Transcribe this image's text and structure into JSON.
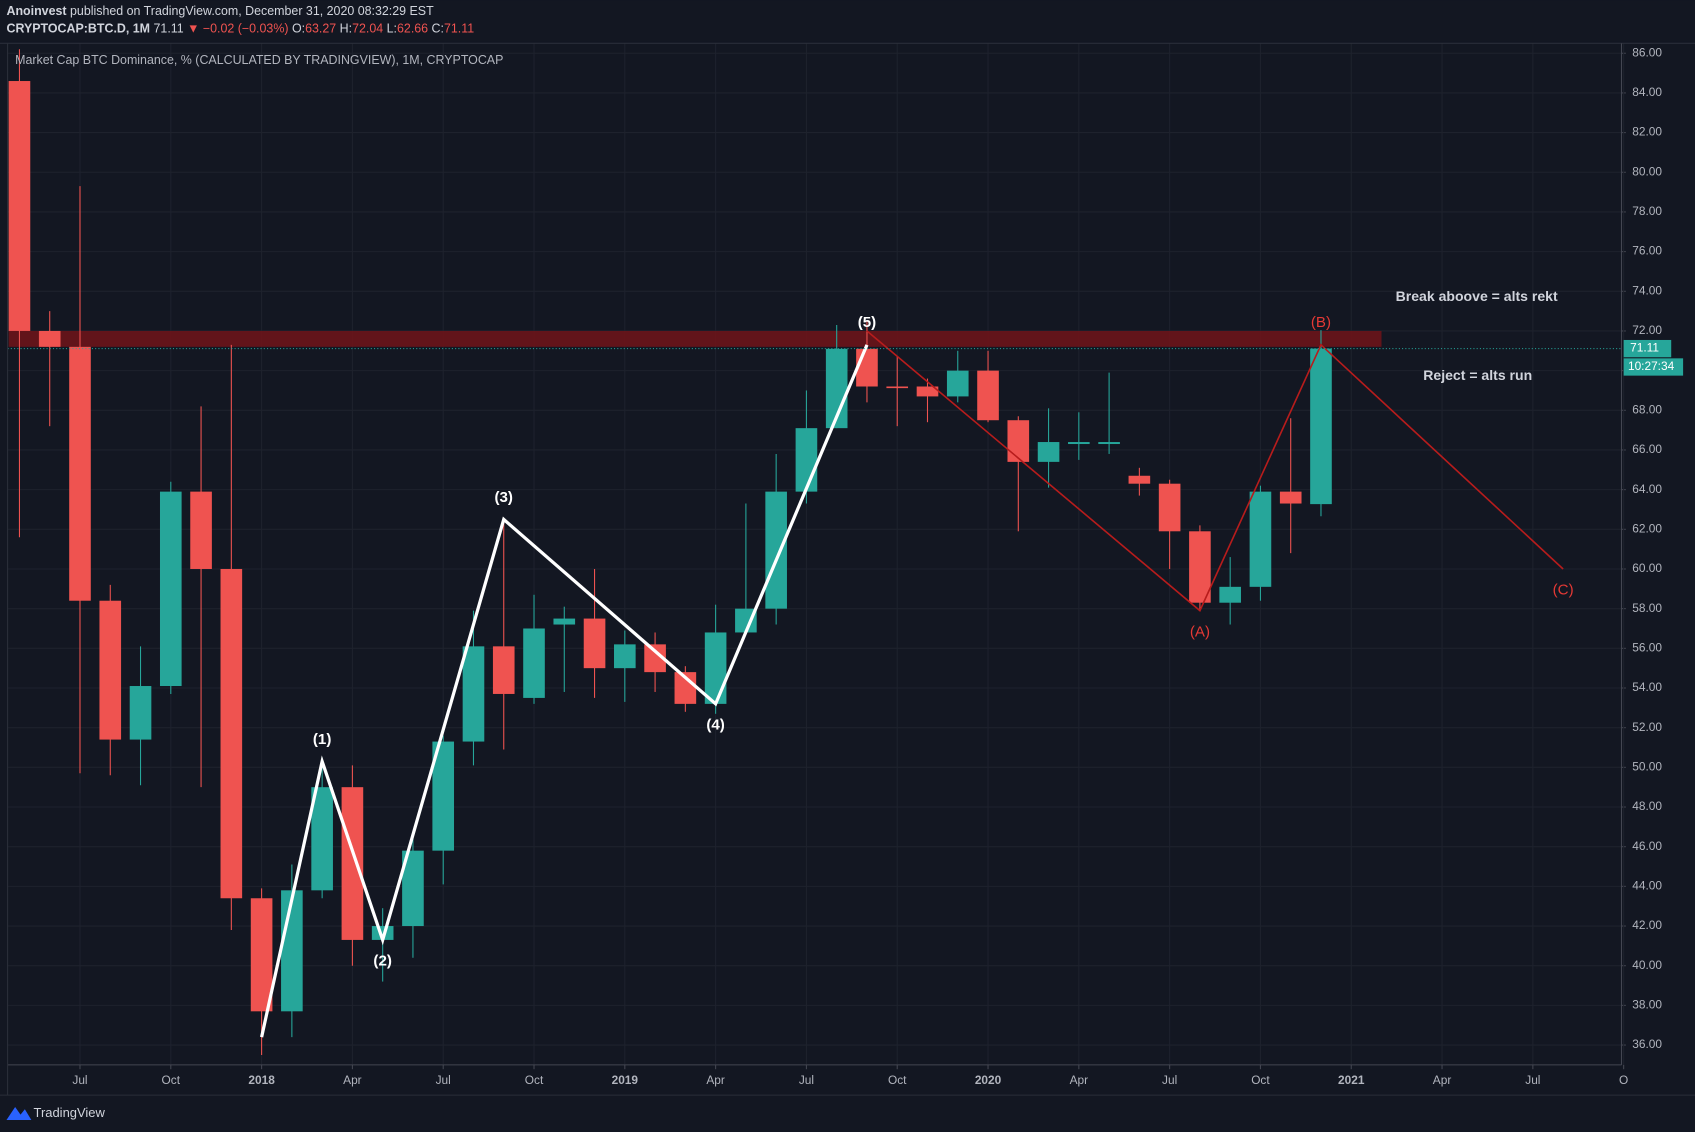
{
  "header": {
    "publisher": "Anoinvest",
    "published": "published on TradingView.com, December 31, 2020 08:32:29 EST",
    "symbol": "CRYPTOCAP:BTC.D, 1M",
    "last": "71.11",
    "change": "▼ −0.02 (−0.03%)",
    "ohlc": [
      {
        "key": "O:",
        "value": "63.27"
      },
      {
        "key": "H:",
        "value": "72.04"
      },
      {
        "key": "L:",
        "value": "62.66"
      },
      {
        "key": "C:",
        "value": "71.11"
      }
    ]
  },
  "chart_data": {
    "type": "candlestick",
    "title": "Market Cap BTC Dominance, % (CALCULATED BY TRADINGVIEW), 1M, CRYPTOCAP",
    "x": [
      "2017-05",
      "2017-06",
      "2017-07",
      "2017-08",
      "2017-09",
      "2017-10",
      "2017-11",
      "2017-12",
      "2018-01",
      "2018-02",
      "2018-03",
      "2018-04",
      "2018-05",
      "2018-06",
      "2018-07",
      "2018-08",
      "2018-09",
      "2018-10",
      "2018-11",
      "2018-12",
      "2019-01",
      "2019-02",
      "2019-03",
      "2019-04",
      "2019-05",
      "2019-06",
      "2019-07",
      "2019-08",
      "2019-09",
      "2019-10",
      "2019-11",
      "2019-12",
      "2020-01",
      "2020-02",
      "2020-03",
      "2020-04",
      "2020-05",
      "2020-06",
      "2020-07",
      "2020-08",
      "2020-09",
      "2020-10",
      "2020-11",
      "2020-12"
    ],
    "open": [
      84.6,
      72.0,
      71.2,
      58.4,
      51.4,
      54.1,
      63.9,
      60.0,
      43.4,
      37.7,
      43.8,
      49.0,
      41.3,
      42.0,
      45.8,
      51.3,
      56.1,
      53.5,
      57.2,
      57.5,
      55.0,
      56.2,
      54.8,
      53.2,
      56.8,
      58.0,
      63.9,
      67.1,
      71.1,
      69.2,
      69.2,
      68.7,
      70.0,
      67.5,
      65.4,
      66.3,
      66.3,
      64.7,
      64.3,
      61.9,
      58.3,
      59.1,
      63.9,
      63.27
    ],
    "high": [
      86.2,
      73.0,
      79.3,
      59.2,
      56.1,
      64.4,
      68.2,
      71.3,
      43.9,
      45.1,
      50.5,
      50.1,
      42.9,
      46.7,
      51.6,
      57.9,
      62.5,
      58.7,
      58.1,
      60.0,
      56.9,
      56.8,
      55.1,
      58.2,
      63.3,
      65.8,
      69.0,
      72.3,
      72.5,
      70.7,
      69.6,
      71.0,
      71.0,
      67.7,
      68.1,
      67.9,
      69.9,
      65.1,
      64.5,
      62.2,
      60.6,
      64.2,
      67.6,
      72.04
    ],
    "low": [
      61.6,
      67.2,
      49.7,
      49.6,
      49.1,
      53.7,
      49.0,
      41.8,
      35.5,
      36.4,
      43.4,
      40.0,
      39.2,
      40.4,
      44.1,
      50.1,
      50.9,
      53.2,
      53.8,
      53.5,
      53.3,
      53.8,
      52.8,
      52.7,
      56.8,
      57.2,
      63.3,
      67.1,
      68.4,
      67.2,
      67.4,
      68.4,
      67.4,
      61.9,
      64.1,
      65.5,
      65.8,
      63.7,
      60.0,
      57.9,
      57.2,
      58.4,
      60.8,
      62.66
    ],
    "close": [
      72.0,
      71.2,
      58.4,
      51.4,
      54.1,
      63.9,
      60.0,
      43.4,
      37.7,
      43.8,
      49.0,
      41.3,
      42.0,
      45.8,
      51.3,
      56.1,
      53.7,
      57.0,
      57.5,
      55.0,
      56.2,
      54.8,
      53.2,
      56.8,
      58.0,
      63.9,
      67.1,
      71.1,
      69.2,
      69.15,
      68.7,
      70.0,
      67.5,
      65.4,
      66.4,
      66.4,
      66.4,
      64.3,
      61.9,
      58.3,
      59.1,
      63.9,
      63.3,
      71.11
    ],
    "up_color": "#26a69a",
    "down_color": "#ef5350",
    "xlim": [
      "2017-05",
      "2021-10"
    ],
    "xticks": [
      {
        "value": "2017-07",
        "label": "Jul"
      },
      {
        "value": "2017-10",
        "label": "Oct"
      },
      {
        "value": "2018-01",
        "label": "2018"
      },
      {
        "value": "2018-04",
        "label": "Apr"
      },
      {
        "value": "2018-07",
        "label": "Jul"
      },
      {
        "value": "2018-10",
        "label": "Oct"
      },
      {
        "value": "2019-01",
        "label": "2019"
      },
      {
        "value": "2019-04",
        "label": "Apr"
      },
      {
        "value": "2019-07",
        "label": "Jul"
      },
      {
        "value": "2019-10",
        "label": "Oct"
      },
      {
        "value": "2020-01",
        "label": "2020"
      },
      {
        "value": "2020-04",
        "label": "Apr"
      },
      {
        "value": "2020-07",
        "label": "Jul"
      },
      {
        "value": "2020-10",
        "label": "Oct"
      },
      {
        "value": "2021-01",
        "label": "2021"
      },
      {
        "value": "2021-04",
        "label": "Apr"
      },
      {
        "value": "2021-07",
        "label": "Jul"
      },
      {
        "value": "2021-10",
        "label": "O"
      }
    ],
    "ylim": [
      35,
      86.5
    ],
    "yticks": [
      {
        "value": 36,
        "label": "36.00"
      },
      {
        "value": 38,
        "label": "38.00"
      },
      {
        "value": 40,
        "label": "40.00"
      },
      {
        "value": 42,
        "label": "42.00"
      },
      {
        "value": 44,
        "label": "44.00"
      },
      {
        "value": 46,
        "label": "46.00"
      },
      {
        "value": 48,
        "label": "48.00"
      },
      {
        "value": 50,
        "label": "50.00"
      },
      {
        "value": 52,
        "label": "52.00"
      },
      {
        "value": 54,
        "label": "54.00"
      },
      {
        "value": 56,
        "label": "56.00"
      },
      {
        "value": 58,
        "label": "58.00"
      },
      {
        "value": 60,
        "label": "60.00"
      },
      {
        "value": 62,
        "label": "62.00"
      },
      {
        "value": 64,
        "label": "64.00"
      },
      {
        "value": 66,
        "label": "66.00"
      },
      {
        "value": 68,
        "label": "68.00"
      },
      {
        "value": 70,
        "label": "70.00"
      },
      {
        "value": 72,
        "label": "72.00"
      },
      {
        "value": 74,
        "label": "74.00"
      },
      {
        "value": 76,
        "label": "76.00"
      },
      {
        "value": 78,
        "label": "78.00"
      },
      {
        "value": 80,
        "label": "80.00"
      },
      {
        "value": 82,
        "label": "82.00"
      },
      {
        "value": 84,
        "label": "84.00"
      },
      {
        "value": 86,
        "label": "86.00"
      }
    ],
    "grid": true,
    "countdown": "10:27:34",
    "zone": {
      "from": "2017-05",
      "to": "2021-02",
      "low": 71.2,
      "high": 72.0,
      "color": "#6b1419"
    },
    "waves": [
      {
        "color": "#ffffff",
        "points": [
          {
            "x": "2018-01",
            "y": 36.4
          },
          {
            "x": "2018-03",
            "y": 50.3,
            "label": "(1)"
          },
          {
            "x": "2018-05",
            "y": 41.3,
            "label": "(2)"
          },
          {
            "x": "2018-09",
            "y": 62.5,
            "label": "(3)"
          },
          {
            "x": "2019-04",
            "y": 53.2,
            "label": "(4)"
          },
          {
            "x": "2019-09",
            "y": 71.3,
            "label": "(5)"
          }
        ]
      },
      {
        "color": "#b71c1c",
        "points": [
          {
            "x": "2019-09",
            "y": 72.0
          },
          {
            "x": "2020-08",
            "y": 57.9,
            "label": "(A)"
          },
          {
            "x": "2020-12",
            "y": 71.3,
            "label": "(B)"
          },
          {
            "x": "2021-08",
            "y": 60.0,
            "label": "(C)"
          }
        ]
      }
    ],
    "notes": [
      "Break aboove = alts rekt",
      "Reject = alts run"
    ]
  },
  "footer": {
    "brand": "TradingView"
  }
}
